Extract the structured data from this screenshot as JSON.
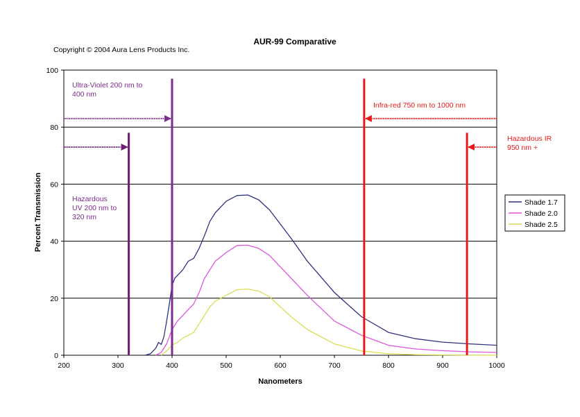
{
  "chart_data": {
    "type": "line",
    "title": "AUR-99 Comparative",
    "copyright": "Copyright © 2004 Aura Lens Products Inc.",
    "xlabel": "Nanometers",
    "ylabel": "Percent Transmission",
    "xlim": [
      200,
      1000
    ],
    "ylim": [
      0,
      100
    ],
    "x_ticks": [
      200,
      300,
      400,
      500,
      600,
      700,
      800,
      900,
      1000
    ],
    "y_ticks": [
      0,
      20,
      40,
      60,
      80,
      100
    ],
    "grid": "horizontal",
    "legend_position": "right",
    "series": [
      {
        "name": "Shade 1.7",
        "color": "#2b2f7e",
        "x": [
          350,
          360,
          370,
          375,
          380,
          385,
          390,
          395,
          400,
          405,
          410,
          420,
          430,
          440,
          450,
          460,
          470,
          480,
          500,
          520,
          540,
          560,
          580,
          600,
          620,
          650,
          700,
          750,
          800,
          850,
          900,
          950,
          1000
        ],
        "y": [
          0,
          0.5,
          2.5,
          4.5,
          3.8,
          6.5,
          12,
          18,
          24.5,
          27,
          28,
          30,
          33,
          34,
          37.5,
          42,
          47,
          50,
          54,
          56,
          56.2,
          54.5,
          51,
          46,
          41,
          33,
          22,
          13.5,
          8,
          5.8,
          4.6,
          4,
          3.5
        ]
      },
      {
        "name": "Shade 2.0",
        "color": "#dd55dd",
        "x": [
          370,
          380,
          390,
          400,
          410,
          420,
          430,
          440,
          450,
          460,
          470,
          480,
          500,
          520,
          540,
          560,
          580,
          600,
          620,
          650,
          700,
          750,
          800,
          850,
          900,
          950,
          1000
        ],
        "y": [
          0,
          1,
          4,
          9,
          12,
          14,
          16,
          18,
          22,
          27,
          30,
          33,
          36,
          38.5,
          38.6,
          37.5,
          35,
          31,
          27,
          21,
          12,
          7,
          3.5,
          2.2,
          1.6,
          1.2,
          1
        ]
      },
      {
        "name": "Shade 2.5",
        "color": "#dcdc55",
        "x": [
          380,
          390,
          400,
          410,
          420,
          430,
          440,
          450,
          460,
          470,
          480,
          500,
          520,
          540,
          560,
          580,
          600,
          620,
          650,
          700,
          750,
          800,
          850,
          900,
          950,
          1000
        ],
        "y": [
          0,
          1.5,
          3.5,
          4.5,
          6,
          7,
          8,
          11,
          14,
          17,
          19,
          21,
          23,
          23.2,
          22.5,
          20.5,
          17,
          13.5,
          9,
          4,
          1.5,
          0.5,
          0.2,
          0.1,
          0.05,
          0
        ]
      }
    ],
    "markers": [
      {
        "x": 320,
        "color": "#6e1b76",
        "from": 0,
        "to": 78
      },
      {
        "x": 400,
        "color": "#7e2a8e",
        "from": 0,
        "to": 97
      },
      {
        "x": 755,
        "color": "#e81818",
        "from": 0,
        "to": 97
      },
      {
        "x": 945,
        "color": "#e81818",
        "from": 0,
        "to": 78
      }
    ],
    "arrows": [
      {
        "y": 83,
        "x_from": 200,
        "x_to": 400,
        "color": "#7e2a8e",
        "direction": "right"
      },
      {
        "y": 73,
        "x_from": 200,
        "x_to": 320,
        "color": "#6e1b76",
        "direction": "right"
      },
      {
        "y": 83,
        "x_from": 1000,
        "x_to": 755,
        "color": "#e81818",
        "direction": "left"
      },
      {
        "y": 73,
        "x_from": 1000,
        "x_to": 945,
        "color": "#e81818",
        "direction": "left"
      }
    ],
    "annotations": [
      {
        "id": "uv",
        "lines": [
          "Ultra-Violet 200 nm to",
          "400 nm"
        ],
        "color": "#7e2a8e"
      },
      {
        "id": "haz-uv",
        "lines": [
          "Hazardous",
          "UV 200 nm to",
          "320 nm"
        ],
        "color": "#7e2a8e"
      },
      {
        "id": "ir",
        "lines": [
          "Infra-red 750 nm to 1000 nm"
        ],
        "color": "#e81818"
      },
      {
        "id": "haz-ir",
        "lines": [
          "Hazardous IR",
          "950 nm +"
        ],
        "color": "#e81818"
      }
    ]
  }
}
